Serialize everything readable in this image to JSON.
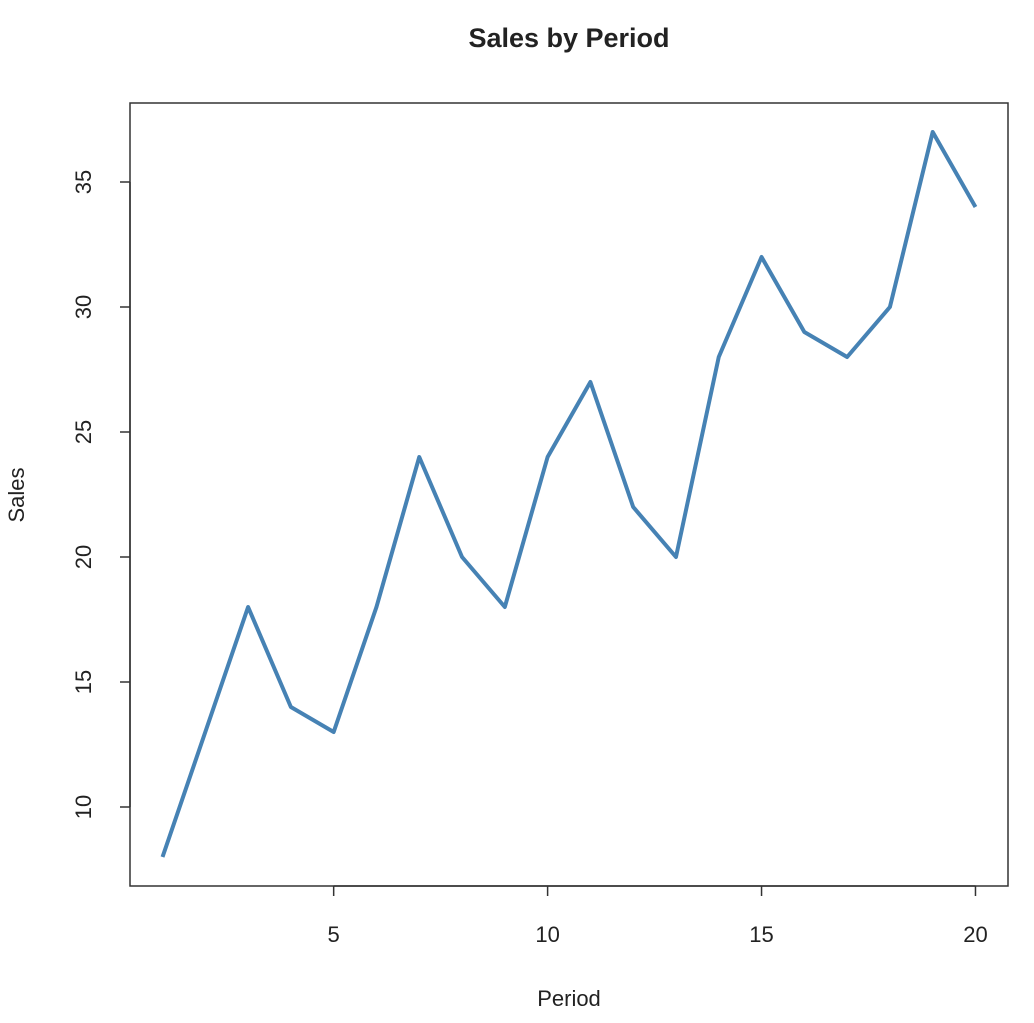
{
  "chart_data": {
    "type": "line",
    "title": "Sales by Period",
    "x_label": "Period",
    "y_label": "Sales",
    "x": [
      1,
      2,
      3,
      4,
      5,
      6,
      7,
      8,
      9,
      10,
      11,
      12,
      13,
      14,
      15,
      16,
      17,
      18,
      19,
      20
    ],
    "series": [
      {
        "name": "Sales",
        "color": "#4682b4",
        "values": [
          8,
          13,
          18,
          14,
          13,
          18,
          24,
          20,
          18,
          24,
          27,
          22,
          20,
          28,
          32,
          29,
          28,
          30,
          37,
          34
        ]
      }
    ],
    "xlim": [
      0.24,
      20.76
    ],
    "xticks": [
      5,
      10,
      15,
      20
    ],
    "ylim": [
      6.84,
      38.16
    ],
    "yticks": [
      10,
      15,
      20,
      25,
      30,
      35
    ]
  }
}
